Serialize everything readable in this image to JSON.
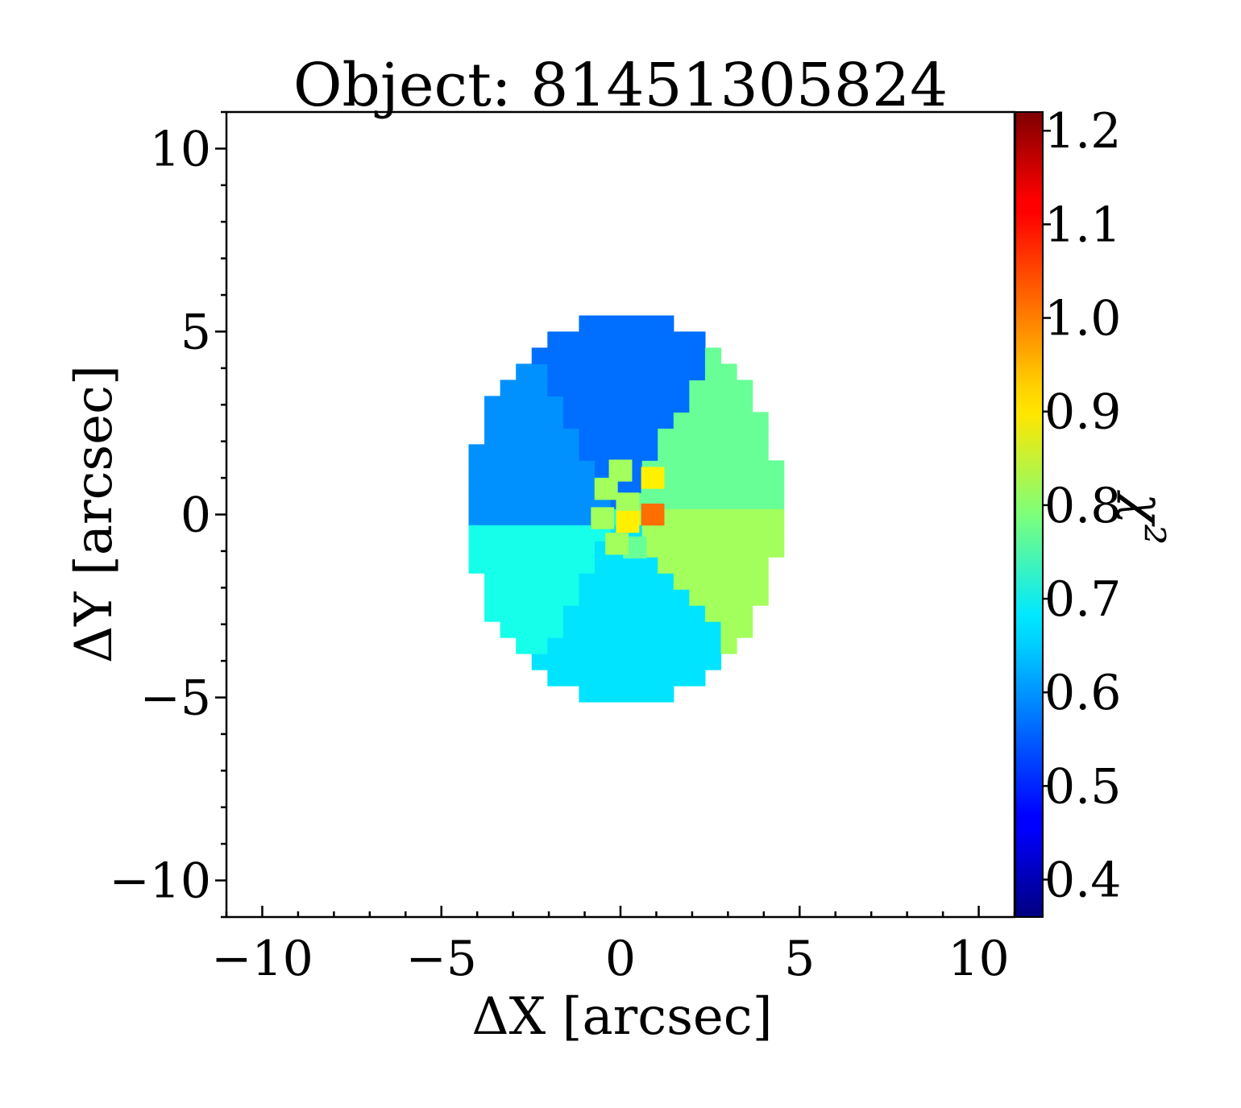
{
  "chart_data": {
    "type": "heatmap",
    "title": "Object: 81451305824",
    "xlabel": "ΔX [arcsec]",
    "ylabel": "ΔY [arcsec]",
    "colorbar_label": "χ²",
    "xlim": [
      -11,
      11
    ],
    "ylim": [
      -11,
      11
    ],
    "x_ticks": [
      -10,
      -5,
      0,
      5,
      10
    ],
    "x_tick_labels": [
      "−10",
      "−5",
      "0",
      "5",
      "10"
    ],
    "y_ticks": [
      -10,
      -5,
      0,
      5,
      10
    ],
    "y_tick_labels": [
      "−10",
      "−5",
      "0",
      "5",
      "10"
    ],
    "colorbar_range": [
      0.36,
      1.22
    ],
    "colorbar_ticks": [
      0.4,
      0.5,
      0.6,
      0.7,
      0.8,
      0.9,
      1.0,
      1.1,
      1.2
    ],
    "colorbar_tick_labels": [
      "0.4",
      "0.5",
      "0.6",
      "0.7",
      "0.8",
      "0.9",
      "1.0",
      "1.1",
      "1.2"
    ],
    "colormap": "jet",
    "grid": false,
    "region_ellipse": {
      "center": [
        0.1,
        0.2
      ],
      "semi_axis_x": 4.4,
      "semi_axis_y": 5.3
    },
    "sectors": [
      {
        "angle_from_deg": 60,
        "angle_to_deg": 120,
        "value": 0.56
      },
      {
        "angle_from_deg": 120,
        "angle_to_deg": 185,
        "value": 0.59
      },
      {
        "angle_from_deg": 185,
        "angle_to_deg": 240,
        "value": 0.7
      },
      {
        "angle_from_deg": 240,
        "angle_to_deg": 310,
        "value": 0.66
      },
      {
        "angle_from_deg": 310,
        "angle_to_deg": 360,
        "value": 0.82
      },
      {
        "angle_from_deg": 0,
        "angle_to_deg": 60,
        "value": 0.77
      }
    ],
    "center_pixels": [
      {
        "x": 0.0,
        "y": 1.2,
        "value": 0.82
      },
      {
        "x": -0.4,
        "y": 0.7,
        "value": 0.82
      },
      {
        "x": 0.2,
        "y": 0.3,
        "value": 0.82
      },
      {
        "x": 0.9,
        "y": 1.0,
        "value": 0.91
      },
      {
        "x": 0.9,
        "y": 0.4,
        "value": 0.77
      },
      {
        "x": -0.5,
        "y": -0.1,
        "value": 0.82
      },
      {
        "x": 0.2,
        "y": -0.2,
        "value": 0.91
      },
      {
        "x": 0.9,
        "y": 0.0,
        "value": 1.02
      },
      {
        "x": 0.4,
        "y": -0.9,
        "value": 0.77
      },
      {
        "x": -0.1,
        "y": -0.8,
        "value": 0.82
      }
    ]
  }
}
